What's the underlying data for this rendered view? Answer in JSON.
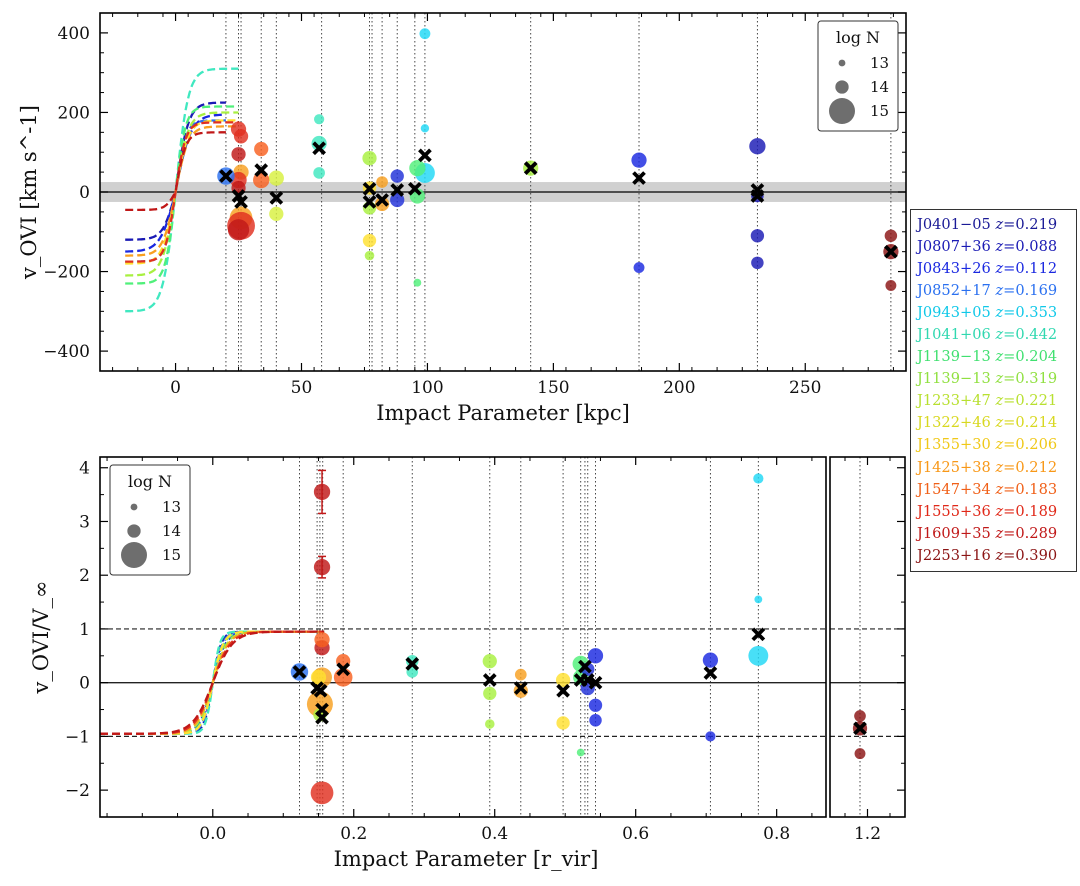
{
  "chart_data": [
    {
      "type": "scatter",
      "panel": "top",
      "xlabel": "Impact Parameter [kpc]",
      "ylabel": "v_OVI [km s^-1]",
      "xlim": [
        -30,
        290
      ],
      "ylim": [
        -450,
        450
      ],
      "xticks": [
        0,
        50,
        100,
        150,
        200,
        250
      ],
      "yticks": [
        -400,
        -200,
        0,
        200,
        400
      ],
      "xtick_labels": [
        "0",
        "50",
        "100",
        "150",
        "200",
        "250"
      ],
      "ytick_labels": [
        "−400",
        "−200",
        "0",
        "200",
        "400"
      ],
      "shaded_band": [
        -25,
        25
      ],
      "zero_line": 0,
      "legend_title": "log N",
      "legend_labels": [
        "13",
        "14",
        "15"
      ],
      "legend_position": "top-right",
      "vlines": [
        20,
        25,
        26,
        34,
        40,
        58,
        77,
        78,
        82,
        88,
        95,
        99,
        141,
        184,
        231,
        284
      ],
      "points": [
        {
          "x": 57,
          "y": 183,
          "logN": 13.6,
          "color": "#40e8c0"
        },
        {
          "x": 57,
          "y": 122,
          "logN": 14.2,
          "color": "#40e8c0"
        },
        {
          "x": 57,
          "y": 48,
          "logN": 13.8,
          "color": "#40e8c0"
        },
        {
          "x": 99,
          "y": 398,
          "logN": 13.7,
          "color": "#20d8f5"
        },
        {
          "x": 99,
          "y": 160,
          "logN": 13.3,
          "color": "#20d8f5"
        },
        {
          "x": 99,
          "y": 48,
          "logN": 14.6,
          "color": "#20d8f5"
        },
        {
          "x": 96,
          "y": 60,
          "logN": 14.3,
          "color": "#50f07a"
        },
        {
          "x": 96,
          "y": -10,
          "logN": 14.2,
          "color": "#50f07a"
        },
        {
          "x": 96,
          "y": -228,
          "logN": 13.2,
          "color": "#50f07a"
        },
        {
          "x": 77,
          "y": 85,
          "logN": 14.1,
          "color": "#a8f040"
        },
        {
          "x": 77,
          "y": -40,
          "logN": 14.0,
          "color": "#a8f040"
        },
        {
          "x": 77,
          "y": -160,
          "logN": 13.5,
          "color": "#a8f040"
        },
        {
          "x": 141,
          "y": 60,
          "logN": 14.2,
          "color": "#a8f040"
        },
        {
          "x": 40,
          "y": 35,
          "logN": 14.2,
          "color": "#d8f040"
        },
        {
          "x": 40,
          "y": -55,
          "logN": 14.1,
          "color": "#d8f040"
        },
        {
          "x": 77,
          "y": 10,
          "logN": 14.0,
          "color": "#ffe030"
        },
        {
          "x": 77,
          "y": -122,
          "logN": 14.0,
          "color": "#ffe030"
        },
        {
          "x": 26,
          "y": 50,
          "logN": 14.2,
          "color": "#f8a020"
        },
        {
          "x": 26,
          "y": -65,
          "logN": 14.8,
          "color": "#f8a020"
        },
        {
          "x": 82,
          "y": 25,
          "logN": 13.8,
          "color": "#f8a020"
        },
        {
          "x": 82,
          "y": -30,
          "logN": 14.1,
          "color": "#f8a020"
        },
        {
          "x": 34,
          "y": 108,
          "logN": 14.1,
          "color": "#f86020"
        },
        {
          "x": 34,
          "y": 30,
          "logN": 14.3,
          "color": "#f86020"
        },
        {
          "x": 25,
          "y": 158,
          "logN": 14.2,
          "color": "#e03020"
        },
        {
          "x": 26,
          "y": 140,
          "logN": 14.1,
          "color": "#e03020"
        },
        {
          "x": 25,
          "y": 30,
          "logN": 14.3,
          "color": "#e03020"
        },
        {
          "x": 26,
          "y": -85,
          "logN": 15.1,
          "color": "#e03020"
        },
        {
          "x": 25,
          "y": 95,
          "logN": 14.1,
          "color": "#c01818"
        },
        {
          "x": 25,
          "y": 10,
          "logN": 14.1,
          "color": "#c01818"
        },
        {
          "x": 25,
          "y": -95,
          "logN": 14.7,
          "color": "#c01818"
        },
        {
          "x": 284,
          "y": -110,
          "logN": 13.9,
          "color": "#8b1414"
        },
        {
          "x": 284,
          "y": -150,
          "logN": 14.2,
          "color": "#8b1414"
        },
        {
          "x": 284,
          "y": -235,
          "logN": 13.7,
          "color": "#8b1414"
        },
        {
          "x": 231,
          "y": 115,
          "logN": 14.3,
          "color": "#1a1ab4"
        },
        {
          "x": 231,
          "y": -10,
          "logN": 13.9,
          "color": "#1a1ab4"
        },
        {
          "x": 231,
          "y": -110,
          "logN": 14.0,
          "color": "#1a1ab4"
        },
        {
          "x": 231,
          "y": -178,
          "logN": 13.9,
          "color": "#1a1ab4"
        },
        {
          "x": 184,
          "y": 80,
          "logN": 14.2,
          "color": "#1a28e0"
        },
        {
          "x": 184,
          "y": -190,
          "logN": 13.7,
          "color": "#1a28e0"
        },
        {
          "x": 88,
          "y": 40,
          "logN": 14.0,
          "color": "#2030d8"
        },
        {
          "x": 88,
          "y": -20,
          "logN": 14.1,
          "color": "#2030d8"
        },
        {
          "x": 20,
          "y": 40,
          "logN": 14.4,
          "color": "#2a70f0"
        }
      ],
      "crosses": [
        {
          "x": 20,
          "y": 40
        },
        {
          "x": 25,
          "y": -10
        },
        {
          "x": 26,
          "y": -25
        },
        {
          "x": 34,
          "y": 55
        },
        {
          "x": 40,
          "y": -15
        },
        {
          "x": 57,
          "y": 110
        },
        {
          "x": 77,
          "y": 8
        },
        {
          "x": 77,
          "y": -25
        },
        {
          "x": 82,
          "y": -20
        },
        {
          "x": 88,
          "y": 5
        },
        {
          "x": 95,
          "y": 8
        },
        {
          "x": 99,
          "y": 92
        },
        {
          "x": 141,
          "y": 60
        },
        {
          "x": 184,
          "y": 35
        },
        {
          "x": 231,
          "y": 5
        },
        {
          "x": 231,
          "y": -10
        },
        {
          "x": 284,
          "y": -150
        }
      ],
      "rotation_curves": [
        {
          "color": "#40e8c0",
          "vmax": 310,
          "vmin": -300,
          "scale": 5,
          "xend": 25
        },
        {
          "color": "#2a70f0",
          "vmax": 180,
          "vmin": -175,
          "scale": 4,
          "xend": 20
        },
        {
          "color": "#1a1ab4",
          "vmax": 225,
          "vmin": -120,
          "scale": 5,
          "xend": 20
        },
        {
          "color": "#1a28e0",
          "vmax": 195,
          "vmin": -150,
          "scale": 6,
          "xend": 20
        },
        {
          "color": "#50f07a",
          "vmax": 215,
          "vmin": -230,
          "scale": 4,
          "xend": 25
        },
        {
          "color": "#a8f040",
          "vmax": 200,
          "vmin": -210,
          "scale": 5,
          "xend": 25
        },
        {
          "color": "#ffe030",
          "vmax": 180,
          "vmin": -180,
          "scale": 5,
          "xend": 25
        },
        {
          "color": "#f8a020",
          "vmax": 165,
          "vmin": -160,
          "scale": 5,
          "xend": 25
        },
        {
          "color": "#e03020",
          "vmax": 175,
          "vmin": -175,
          "scale": 4,
          "xend": 25
        },
        {
          "color": "#c01818",
          "vmax": 150,
          "vmin": -45,
          "scale": 4,
          "xend": 20
        }
      ]
    },
    {
      "type": "scatter",
      "panel": "bottom",
      "xlabel": "Impact Parameter [r_vir]",
      "ylabel": "v_OVI/V_∞",
      "xlim_main": [
        -0.16,
        0.87
      ],
      "xlim_inset": [
        1.15,
        1.25
      ],
      "ylim": [
        -2.5,
        4.2
      ],
      "xticks": [
        0.0,
        0.2,
        0.4,
        0.6,
        0.8
      ],
      "xtick_labels": [
        "0.0",
        "0.2",
        "0.4",
        "0.6",
        "0.8"
      ],
      "inset_xticks": [
        1.2
      ],
      "inset_xtick_labels": [
        "1.2"
      ],
      "yticks": [
        -2,
        -1,
        0,
        1,
        2,
        3,
        4
      ],
      "ytick_labels": [
        "−2",
        "−1",
        "0",
        "1",
        "2",
        "3",
        "4"
      ],
      "dashed_lines": [
        1,
        -1
      ],
      "zero_line": 0,
      "legend_title": "log N",
      "legend_labels": [
        "13",
        "14",
        "15"
      ],
      "legend_position": "top-left",
      "vlines": [
        0.123,
        0.148,
        0.152,
        0.156,
        0.185,
        0.283,
        0.393,
        0.437,
        0.497,
        0.522,
        0.528,
        0.532,
        0.543,
        0.706,
        0.774
      ],
      "inset_vlines": [
        1.19
      ],
      "points": [
        {
          "x": 0.155,
          "y": 3.55,
          "logN": 14.3,
          "color": "#c01818",
          "err": 0.4
        },
        {
          "x": 0.155,
          "y": 2.15,
          "logN": 14.3,
          "color": "#c01818",
          "err": 0.2
        },
        {
          "x": 0.155,
          "y": 0.65,
          "logN": 14.2,
          "color": "#c01818"
        },
        {
          "x": 0.155,
          "y": -2.05,
          "logN": 14.8,
          "color": "#e03020"
        },
        {
          "x": 0.155,
          "y": 0.8,
          "logN": 14.2,
          "color": "#f86020"
        },
        {
          "x": 0.155,
          "y": 0.1,
          "logN": 14.6,
          "color": "#f8a020"
        },
        {
          "x": 0.152,
          "y": -0.4,
          "logN": 15.0,
          "color": "#f8a020"
        },
        {
          "x": 0.15,
          "y": 0.1,
          "logN": 14.2,
          "color": "#ffe030"
        },
        {
          "x": 0.152,
          "y": -0.6,
          "logN": 14.0,
          "color": "#a8f040"
        },
        {
          "x": 0.123,
          "y": 0.2,
          "logN": 14.4,
          "color": "#2a70f0"
        },
        {
          "x": 0.185,
          "y": 0.4,
          "logN": 14.1,
          "color": "#f86020"
        },
        {
          "x": 0.185,
          "y": 0.1,
          "logN": 14.5,
          "color": "#f86020"
        },
        {
          "x": 0.283,
          "y": 0.4,
          "logN": 13.9,
          "color": "#40e8c0"
        },
        {
          "x": 0.283,
          "y": 0.2,
          "logN": 13.8,
          "color": "#40e8c0"
        },
        {
          "x": 0.393,
          "y": 0.4,
          "logN": 14.1,
          "color": "#a8f040"
        },
        {
          "x": 0.393,
          "y": -0.2,
          "logN": 14.0,
          "color": "#a8f040"
        },
        {
          "x": 0.393,
          "y": -0.77,
          "logN": 13.5,
          "color": "#a8f040"
        },
        {
          "x": 0.437,
          "y": 0.15,
          "logN": 13.8,
          "color": "#f8a020"
        },
        {
          "x": 0.437,
          "y": -0.15,
          "logN": 14.1,
          "color": "#f8a020"
        },
        {
          "x": 0.497,
          "y": 0.05,
          "logN": 14.1,
          "color": "#ffe030"
        },
        {
          "x": 0.497,
          "y": -0.75,
          "logN": 14.0,
          "color": "#ffe030"
        },
        {
          "x": 0.522,
          "y": 0.35,
          "logN": 14.3,
          "color": "#50f07a"
        },
        {
          "x": 0.522,
          "y": 0.1,
          "logN": 14.2,
          "color": "#50f07a"
        },
        {
          "x": 0.522,
          "y": -1.3,
          "logN": 13.2,
          "color": "#50f07a"
        },
        {
          "x": 0.532,
          "y": 0.25,
          "logN": 14.0,
          "color": "#2030d8"
        },
        {
          "x": 0.532,
          "y": -0.1,
          "logN": 14.1,
          "color": "#2030d8"
        },
        {
          "x": 0.543,
          "y": 0.5,
          "logN": 14.2,
          "color": "#1a28e0"
        },
        {
          "x": 0.543,
          "y": -0.42,
          "logN": 14.0,
          "color": "#1a28e0"
        },
        {
          "x": 0.543,
          "y": -0.7,
          "logN": 13.9,
          "color": "#1a28e0"
        },
        {
          "x": 0.706,
          "y": 0.42,
          "logN": 14.2,
          "color": "#1a28e0"
        },
        {
          "x": 0.706,
          "y": -1.0,
          "logN": 13.6,
          "color": "#1a28e0"
        },
        {
          "x": 0.774,
          "y": 3.8,
          "logN": 13.6,
          "color": "#20d8f5"
        },
        {
          "x": 0.774,
          "y": 1.55,
          "logN": 13.2,
          "color": "#20d8f5"
        },
        {
          "x": 0.774,
          "y": 0.5,
          "logN": 14.6,
          "color": "#20d8f5"
        },
        {
          "x": 1.19,
          "y": -0.62,
          "logN": 13.8,
          "color": "#8b1414"
        },
        {
          "x": 1.19,
          "y": -0.85,
          "logN": 14.1,
          "color": "#8b1414"
        },
        {
          "x": 1.19,
          "y": -1.32,
          "logN": 13.7,
          "color": "#8b1414"
        }
      ],
      "crosses": [
        {
          "x": 0.123,
          "y": 0.2
        },
        {
          "x": 0.148,
          "y": -0.1
        },
        {
          "x": 0.153,
          "y": -0.15
        },
        {
          "x": 0.155,
          "y": -0.5
        },
        {
          "x": 0.155,
          "y": -0.65
        },
        {
          "x": 0.185,
          "y": 0.25
        },
        {
          "x": 0.283,
          "y": 0.35
        },
        {
          "x": 0.393,
          "y": 0.05
        },
        {
          "x": 0.437,
          "y": -0.1
        },
        {
          "x": 0.497,
          "y": -0.15
        },
        {
          "x": 0.522,
          "y": 0.05
        },
        {
          "x": 0.528,
          "y": 0.3
        },
        {
          "x": 0.532,
          "y": 0.05
        },
        {
          "x": 0.543,
          "y": 0.0
        },
        {
          "x": 0.706,
          "y": 0.18
        },
        {
          "x": 0.774,
          "y": 0.9
        },
        {
          "x": 1.19,
          "y": -0.85
        }
      ],
      "rotation_curves": [
        {
          "color": "#1a1ab4",
          "scale": 0.012,
          "sign": 1
        },
        {
          "color": "#1a28e0",
          "scale": 0.018,
          "sign": 1
        },
        {
          "color": "#2a70f0",
          "scale": 0.014,
          "sign": 1
        },
        {
          "color": "#40e8c0",
          "scale": 0.01,
          "sign": 1
        },
        {
          "color": "#50f07a",
          "scale": 0.016,
          "sign": 1
        },
        {
          "color": "#a8f040",
          "scale": 0.02,
          "sign": 1
        },
        {
          "color": "#ffe030",
          "scale": 0.015,
          "sign": 1
        },
        {
          "color": "#f8a020",
          "scale": 0.022,
          "sign": 1
        },
        {
          "color": "#e03020",
          "scale": 0.025,
          "sign": 1
        },
        {
          "color": "#c01818",
          "scale": 0.028,
          "sign": 1
        }
      ]
    }
  ],
  "galaxy_legend": [
    {
      "name": "J0401−05",
      "z": "0.219",
      "color": "#1a1a96"
    },
    {
      "name": "J0807+36",
      "z": "0.088",
      "color": "#1a1ab4"
    },
    {
      "name": "J0843+26",
      "z": "0.112",
      "color": "#1a28e0"
    },
    {
      "name": "J0852+17",
      "z": "0.169",
      "color": "#2a70f0"
    },
    {
      "name": "J0943+05",
      "z": "0.353",
      "color": "#10c8e8"
    },
    {
      "name": "J1041+06",
      "z": "0.442",
      "color": "#30d8b0"
    },
    {
      "name": "J1139−13",
      "z": "0.204",
      "color": "#40e070"
    },
    {
      "name": "J1139−13",
      "z": "0.319",
      "color": "#90e040"
    },
    {
      "name": "J1233+47",
      "z": "0.221",
      "color": "#b8e030"
    },
    {
      "name": "J1322+46",
      "z": "0.214",
      "color": "#d8d820"
    },
    {
      "name": "J1355+30",
      "z": "0.206",
      "color": "#f0c818"
    },
    {
      "name": "J1425+38",
      "z": "0.212",
      "color": "#f89818"
    },
    {
      "name": "J1547+34",
      "z": "0.183",
      "color": "#f06018"
    },
    {
      "name": "J1555+36",
      "z": "0.189",
      "color": "#e02818"
    },
    {
      "name": "J1609+35",
      "z": "0.289",
      "color": "#c01818"
    },
    {
      "name": "J2253+16",
      "z": "0.390",
      "color": "#8b1414"
    }
  ],
  "z_label": "z="
}
